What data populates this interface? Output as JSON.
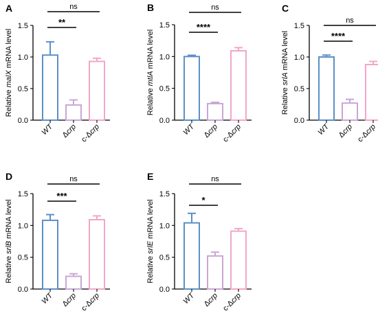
{
  "chart_data": [
    {
      "panel": "A",
      "type": "bar",
      "ylabel_parts": [
        "Relative ",
        "malX",
        " mRNA level"
      ],
      "categories": [
        "WT",
        "Δcrp",
        "c-Δcrp"
      ],
      "category_parts": [
        [
          "",
          "WT"
        ],
        [
          "Δ",
          "crp"
        ],
        [
          "c-Δ",
          "crp"
        ]
      ],
      "values": [
        1.03,
        0.24,
        0.93
      ],
      "errors": [
        0.21,
        0.08,
        0.05
      ],
      "colors": [
        "#5b8fc7",
        "#c9a6d6",
        "#f2a6c8"
      ],
      "ylim": [
        0,
        1.5
      ],
      "yticks": [
        "0.0",
        "0.5",
        "1.0",
        "1.5"
      ],
      "sig_star": "**",
      "sig_ns": "ns"
    },
    {
      "panel": "B",
      "type": "bar",
      "ylabel_parts": [
        "Relative ",
        "mtlA",
        " mRNA level"
      ],
      "categories": [
        "WT",
        "Δcrp",
        "c-Δcrp"
      ],
      "category_parts": [
        [
          "",
          "WT"
        ],
        [
          "Δ",
          "crp"
        ],
        [
          "c-Δ",
          "crp"
        ]
      ],
      "values": [
        1.0,
        0.26,
        1.09
      ],
      "errors": [
        0.02,
        0.02,
        0.05
      ],
      "colors": [
        "#5b8fc7",
        "#c9a6d6",
        "#f2a6c8"
      ],
      "ylim": [
        0,
        1.5
      ],
      "yticks": [
        "0.0",
        "0.5",
        "1.0",
        "1.5"
      ],
      "sig_star": "****",
      "sig_ns": "ns"
    },
    {
      "panel": "C",
      "type": "bar",
      "ylabel_parts": [
        "Relative ",
        "srlA",
        " mRNA level"
      ],
      "categories": [
        "WT",
        "Δcrp",
        "c-Δcrp"
      ],
      "category_parts": [
        [
          "",
          "WT"
        ],
        [
          "Δ",
          "crp"
        ],
        [
          "c-Δ",
          "crp"
        ]
      ],
      "values": [
        1.0,
        0.27,
        0.88
      ],
      "errors": [
        0.03,
        0.06,
        0.05
      ],
      "colors": [
        "#5b8fc7",
        "#c9a6d6",
        "#f2a6c8"
      ],
      "ylim": [
        0,
        1.5
      ],
      "yticks": [
        "0.0",
        "0.5",
        "1.0",
        "1.5"
      ],
      "sig_star": "****",
      "sig_ns": "ns"
    },
    {
      "panel": "D",
      "type": "bar",
      "ylabel_parts": [
        "Relative ",
        "srlB",
        " mRNA level"
      ],
      "categories": [
        "WT",
        "Δcrp",
        "c-Δcrp"
      ],
      "category_parts": [
        [
          "",
          "WT"
        ],
        [
          "Δ",
          "crp"
        ],
        [
          "c-Δ",
          "crp"
        ]
      ],
      "values": [
        1.08,
        0.2,
        1.09
      ],
      "errors": [
        0.09,
        0.04,
        0.06
      ],
      "colors": [
        "#5b8fc7",
        "#c9a6d6",
        "#f2a6c8"
      ],
      "ylim": [
        0,
        1.5
      ],
      "yticks": [
        "0.0",
        "0.5",
        "1.0",
        "1.5"
      ],
      "sig_star": "***",
      "sig_ns": "ns"
    },
    {
      "panel": "E",
      "type": "bar",
      "ylabel_parts": [
        "Relative ",
        "srlE",
        " mRNA level"
      ],
      "categories": [
        "WT",
        "Δcrp",
        "c-Δcrp"
      ],
      "category_parts": [
        [
          "",
          "WT"
        ],
        [
          "Δ",
          "crp"
        ],
        [
          "c-Δ",
          "crp"
        ]
      ],
      "values": [
        1.04,
        0.52,
        0.91
      ],
      "errors": [
        0.15,
        0.06,
        0.04
      ],
      "colors": [
        "#5b8fc7",
        "#c9a6d6",
        "#f2a6c8"
      ],
      "ylim": [
        0,
        1.5
      ],
      "yticks": [
        "0.0",
        "0.5",
        "1.0",
        "1.5"
      ],
      "sig_star": "*",
      "sig_ns": "ns"
    }
  ]
}
